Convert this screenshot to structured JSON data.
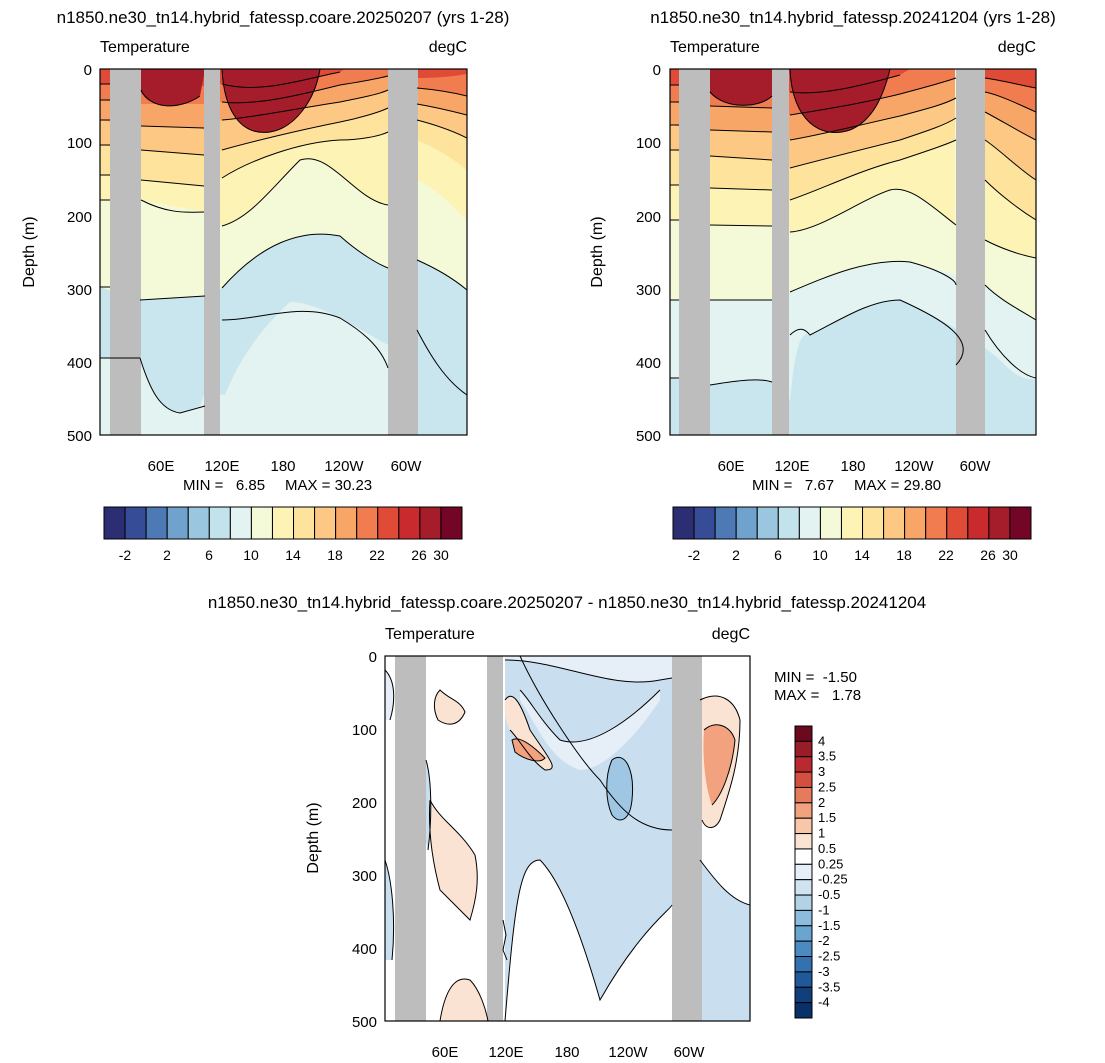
{
  "figure": {
    "background": "#ffffff",
    "land_mask_color": "#bdbdbd",
    "contour_line_color": "#000000"
  },
  "chart_data": [
    {
      "type": "heatmap",
      "title": "n1850.ne30_tn14.hybrid_fatessp.coare.20250207 (yrs 1-28)",
      "left_label": "Temperature",
      "right_label": "degC",
      "ylabel": "Depth (m)",
      "y_ticks": [
        "0",
        "100",
        "200",
        "300",
        "400",
        "500"
      ],
      "ylim": [
        500,
        0
      ],
      "x_ticks": [
        "60E",
        "120E",
        "180",
        "120W",
        "60W"
      ],
      "min_label": "MIN =   6.85",
      "max_label": "MAX = 30.23",
      "min": 6.85,
      "max": 30.23,
      "colorbar_labels": [
        "-2",
        "2",
        "6",
        "10",
        "14",
        "18",
        "22",
        "26",
        "30"
      ],
      "colorbar_levels": [
        -4,
        -2,
        0,
        2,
        4,
        6,
        8,
        10,
        12,
        14,
        16,
        18,
        20,
        22,
        24,
        26,
        28,
        30,
        32
      ],
      "colors": [
        "#2b2e72",
        "#374c97",
        "#4d79b5",
        "#6fa3cd",
        "#9ac7df",
        "#c2e2ec",
        "#e3f3f1",
        "#f4f9d8",
        "#fdf3b5",
        "#fde39c",
        "#fdc884",
        "#f8a667",
        "#f07c4f",
        "#df4b37",
        "#c82a2d",
        "#a51d2a",
        "#730627"
      ]
    },
    {
      "type": "heatmap",
      "title": "n1850.ne30_tn14.hybrid_fatessp.20241204 (yrs 1-28)",
      "left_label": "Temperature",
      "right_label": "degC",
      "ylabel": "Depth (m)",
      "y_ticks": [
        "0",
        "100",
        "200",
        "300",
        "400",
        "500"
      ],
      "ylim": [
        500,
        0
      ],
      "x_ticks": [
        "60E",
        "120E",
        "180",
        "120W",
        "60W"
      ],
      "min_label": "MIN =   7.67",
      "max_label": "MAX = 29.80",
      "min": 7.67,
      "max": 29.8,
      "colorbar_labels": [
        "-2",
        "2",
        "6",
        "10",
        "14",
        "18",
        "22",
        "26",
        "30"
      ],
      "colorbar_levels": [
        -4,
        -2,
        0,
        2,
        4,
        6,
        8,
        10,
        12,
        14,
        16,
        18,
        20,
        22,
        24,
        26,
        28,
        30,
        32
      ],
      "colors": [
        "#2b2e72",
        "#374c97",
        "#4d79b5",
        "#6fa3cd",
        "#9ac7df",
        "#c2e2ec",
        "#e3f3f1",
        "#f4f9d8",
        "#fdf3b5",
        "#fde39c",
        "#fdc884",
        "#f8a667",
        "#f07c4f",
        "#df4b37",
        "#c82a2d",
        "#a51d2a",
        "#730627"
      ]
    },
    {
      "type": "heatmap",
      "title": "n1850.ne30_tn14.hybrid_fatessp.coare.20250207 - n1850.ne30_tn14.hybrid_fatessp.20241204",
      "left_label": "Temperature",
      "right_label": "degC",
      "ylabel": "Depth (m)",
      "y_ticks": [
        "0",
        "100",
        "200",
        "300",
        "400",
        "500"
      ],
      "ylim": [
        500,
        0
      ],
      "x_ticks": [
        "60E",
        "120E",
        "180",
        "120W",
        "60W"
      ],
      "min_label": "MIN =  -1.50",
      "max_label": "MAX =   1.78",
      "min": -1.5,
      "max": 1.78,
      "colorbar_labels": [
        "4",
        "3.5",
        "3",
        "2.5",
        "2",
        "1.5",
        "1",
        "0.5",
        "0.25",
        "-0.25",
        "-0.5",
        "-1",
        "-1.5",
        "-2",
        "-2.5",
        "-3",
        "-3.5",
        "-4"
      ],
      "colors": [
        "#6b0a1e",
        "#991c2a",
        "#b92a30",
        "#d3503e",
        "#e67a5d",
        "#f3a27f",
        "#f8c6a9",
        "#fbe3d4",
        "#ffffff",
        "#e6eff7",
        "#d0e3f0",
        "#b3d2e8",
        "#8dbbdc",
        "#6aa5d0",
        "#4b8bc2",
        "#3372b0",
        "#20599a",
        "#123f7c",
        "#08306b"
      ]
    }
  ]
}
